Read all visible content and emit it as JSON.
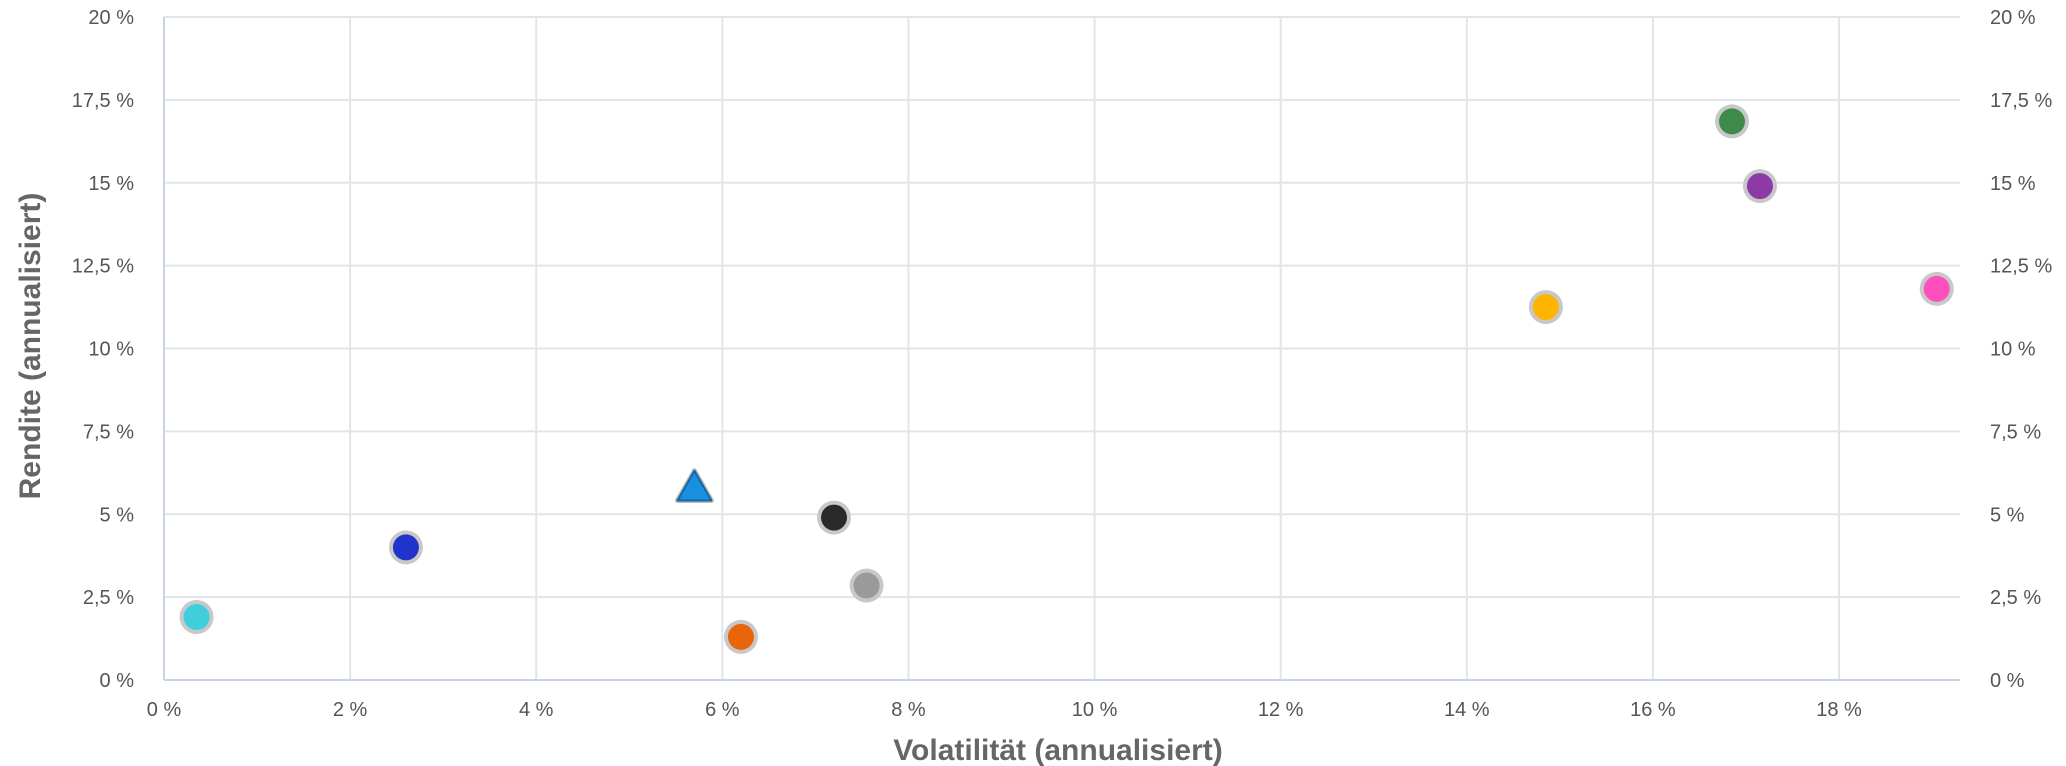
{
  "chart_data": {
    "type": "scatter",
    "xlabel": "Volatilität (annualisiert)",
    "ylabel": "Rendite (annualisiert)",
    "xlim": [
      0,
      19.3
    ],
    "ylim": [
      0,
      20
    ],
    "x_ticks": [
      {
        "value": 0,
        "label": "0 %"
      },
      {
        "value": 2,
        "label": "2 %"
      },
      {
        "value": 4,
        "label": "4 %"
      },
      {
        "value": 6,
        "label": "6 %"
      },
      {
        "value": 8,
        "label": "8 %"
      },
      {
        "value": 10,
        "label": "10 %"
      },
      {
        "value": 12,
        "label": "12 %"
      },
      {
        "value": 14,
        "label": "14 %"
      },
      {
        "value": 16,
        "label": "16 %"
      },
      {
        "value": 18,
        "label": "18 %"
      }
    ],
    "y_ticks": [
      {
        "value": 0,
        "label": "0 %"
      },
      {
        "value": 2.5,
        "label": "2,5 %"
      },
      {
        "value": 5,
        "label": "5 %"
      },
      {
        "value": 7.5,
        "label": "7,5 %"
      },
      {
        "value": 10,
        "label": "10 %"
      },
      {
        "value": 12.5,
        "label": "12,5 %"
      },
      {
        "value": 15,
        "label": "15 %"
      },
      {
        "value": 17.5,
        "label": "17,5 %"
      },
      {
        "value": 20,
        "label": "20 %"
      }
    ],
    "grid": true,
    "points": [
      {
        "x": 0.35,
        "y": 1.9,
        "color": "#3fcfdc",
        "marker": "circle"
      },
      {
        "x": 2.6,
        "y": 4.0,
        "color": "#2233cc",
        "marker": "circle"
      },
      {
        "x": 5.7,
        "y": 5.8,
        "color": "#1a8fe0",
        "marker": "triangle"
      },
      {
        "x": 6.2,
        "y": 1.3,
        "color": "#e8650a",
        "marker": "circle"
      },
      {
        "x": 7.2,
        "y": 4.9,
        "color": "#2a2a2a",
        "marker": "circle"
      },
      {
        "x": 7.55,
        "y": 2.85,
        "color": "#9a9a9a",
        "marker": "circle"
      },
      {
        "x": 14.85,
        "y": 11.25,
        "color": "#ffb400",
        "marker": "circle"
      },
      {
        "x": 16.85,
        "y": 16.85,
        "color": "#3f8a48",
        "marker": "circle"
      },
      {
        "x": 17.15,
        "y": 14.9,
        "color": "#8e3aa6",
        "marker": "circle"
      },
      {
        "x": 19.05,
        "y": 11.8,
        "color": "#ff4fbd",
        "marker": "circle"
      }
    ]
  }
}
